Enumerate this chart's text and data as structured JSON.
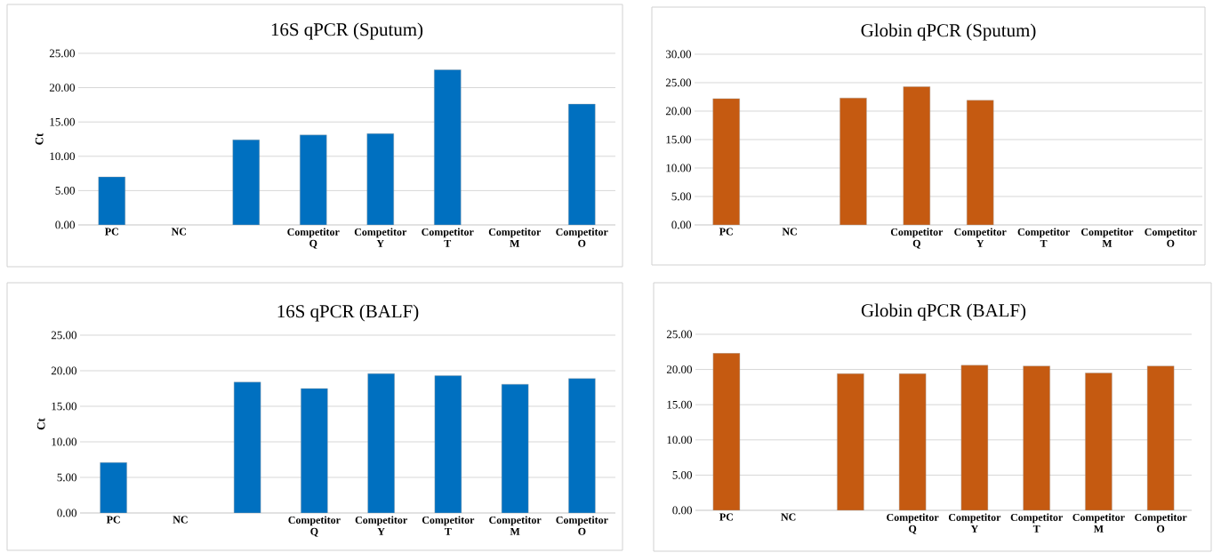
{
  "chart_data": [
    {
      "type": "bar",
      "title": "16S qPCR (Sputum)",
      "ylabel": "Ct",
      "categories": [
        "PC",
        "NC",
        null,
        "Competitor Q",
        "Competitor Y",
        "Competitor T",
        "Competitor M",
        "Competitor O"
      ],
      "values": [
        7.0,
        null,
        12.4,
        13.1,
        13.3,
        22.6,
        null,
        17.6
      ],
      "color": "#0070c0",
      "ylim": [
        0,
        25
      ],
      "yticks": [
        {
          "value": 0,
          "label": "0.00"
        },
        {
          "value": 5,
          "label": "5.00"
        },
        {
          "value": 10,
          "label": "10.00"
        },
        {
          "value": 15,
          "label": "15.00"
        },
        {
          "value": 20,
          "label": "20.00"
        },
        {
          "value": 25,
          "label": "25.00"
        }
      ],
      "grid": "y"
    },
    {
      "type": "bar",
      "title": "Globin qPCR (Sputum)",
      "categories": [
        "PC",
        "NC",
        null,
        "Competitor Q",
        "Competitor Y",
        "Competitor T",
        "Competitor M",
        "Competitor O"
      ],
      "values": [
        22.2,
        null,
        22.3,
        24.3,
        21.9,
        null,
        null,
        null
      ],
      "color": "#c55a11",
      "ylim": [
        0,
        30
      ],
      "yticks": [
        {
          "value": 0,
          "label": "0.00"
        },
        {
          "value": 5,
          "label": "5.00"
        },
        {
          "value": 10,
          "label": "10.00"
        },
        {
          "value": 15,
          "label": "15.00"
        },
        {
          "value": 20,
          "label": "20.00"
        },
        {
          "value": 25,
          "label": "25.00"
        },
        {
          "value": 30,
          "label": "30.00"
        }
      ],
      "grid": "y"
    },
    {
      "type": "bar",
      "title": "16S qPCR (BALF)",
      "ylabel": "Ct",
      "categories": [
        "PC",
        "NC",
        null,
        "Competitor Q",
        "Competitor Y",
        "Competitor T",
        "Competitor M",
        "Competitor O"
      ],
      "values": [
        7.1,
        null,
        18.4,
        17.5,
        19.6,
        19.3,
        18.1,
        18.9
      ],
      "color": "#0070c0",
      "ylim": [
        0,
        25
      ],
      "yticks": [
        {
          "value": 0,
          "label": "0.00"
        },
        {
          "value": 5,
          "label": "5.00"
        },
        {
          "value": 10,
          "label": "10.00"
        },
        {
          "value": 15,
          "label": "15.00"
        },
        {
          "value": 20,
          "label": "20.00"
        },
        {
          "value": 25,
          "label": "25.00"
        }
      ],
      "grid": "y"
    },
    {
      "type": "bar",
      "title": "Globin qPCR (BALF)",
      "categories": [
        "PC",
        "NC",
        null,
        "Competitor Q",
        "Competitor Y",
        "Competitor T",
        "Competitor M",
        "Competitor O"
      ],
      "values": [
        22.3,
        null,
        19.4,
        19.4,
        20.6,
        20.5,
        19.5,
        20.5
      ],
      "color": "#c55a11",
      "ylim": [
        0,
        25
      ],
      "yticks": [
        {
          "value": 0,
          "label": "0.00"
        },
        {
          "value": 5,
          "label": "5.00"
        },
        {
          "value": 10,
          "label": "10.00"
        },
        {
          "value": 15,
          "label": "15.00"
        },
        {
          "value": 20,
          "label": "20.00"
        },
        {
          "value": 25,
          "label": "25.00"
        }
      ],
      "grid": "y"
    }
  ]
}
